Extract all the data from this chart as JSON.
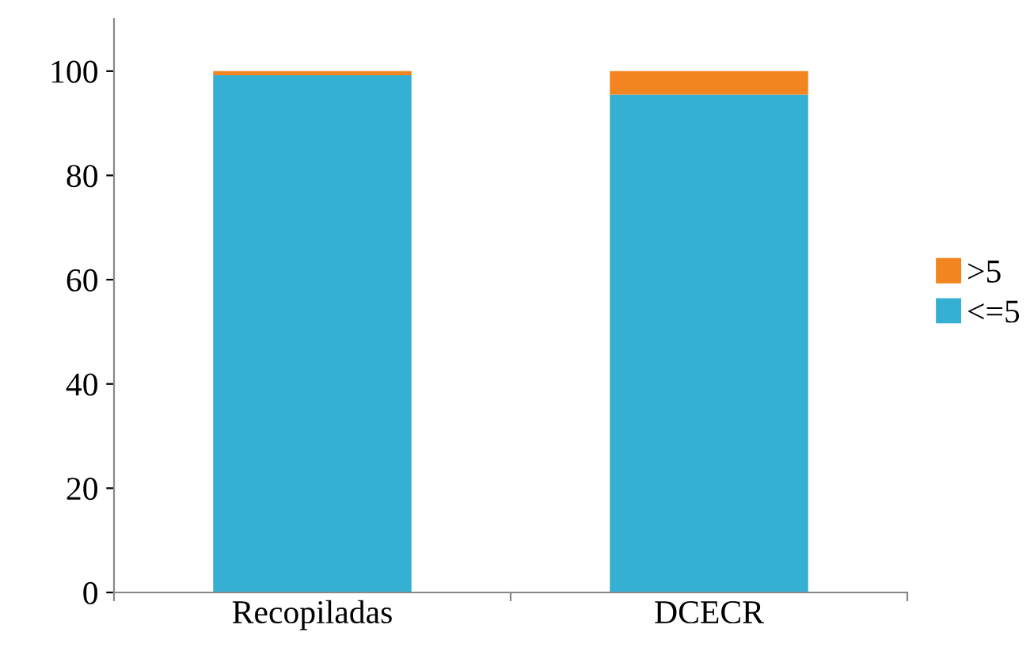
{
  "chart_data": {
    "type": "bar",
    "stacked": true,
    "categories": [
      "Recopiladas",
      "DCECR"
    ],
    "series": [
      {
        "name": "<=5",
        "color": "#35b0d3",
        "values": [
          99.2,
          95.5
        ]
      },
      {
        "name": ">5",
        "color": "#f38520",
        "values": [
          0.8,
          4.5
        ]
      }
    ],
    "ylim": [
      0,
      110
    ],
    "yticks": [
      0,
      20,
      40,
      60,
      80,
      100
    ],
    "grid": false,
    "legend": "right"
  }
}
